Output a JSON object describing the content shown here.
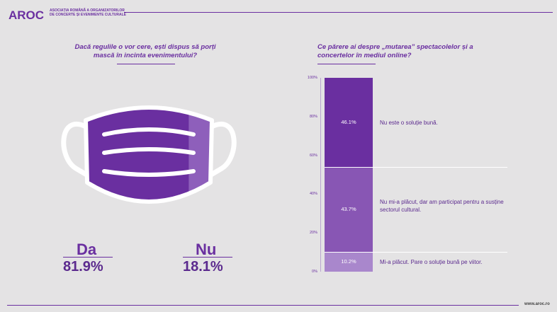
{
  "header": {
    "logo": "AROC",
    "org_name": "Asociația Română a Organizatorilor de Concerte și Evenimente Culturale"
  },
  "footer": {
    "url": "www.aroc.ro"
  },
  "colors": {
    "dark": "#6a2fa0",
    "mid": "#8856b4",
    "light": "#a987cc",
    "bg": "#e4e3e4"
  },
  "left_panel": {
    "question": "Dacă regulile o vor cere, ești dispus să porți mască în incinta evenimentului?",
    "yes_label": "Da",
    "yes_value": "81.9%",
    "no_label": "Nu",
    "no_value": "18.1%"
  },
  "right_panel": {
    "question": "Ce părere ai despre „mutarea” spectacolelor și a concertelor în mediul online?"
  },
  "chart_data": [
    {
      "type": "pie",
      "title": "Dacă regulile o vor cere, ești dispus să porți mască în incinta evenimentului?",
      "categories": [
        "Da",
        "Nu"
      ],
      "values": [
        81.9,
        18.1
      ],
      "visual": "mask-icon"
    },
    {
      "type": "bar",
      "stacked": true,
      "title": "Ce părere ai despre „mutarea” spectacolelor și a concertelor în mediul online?",
      "ylim": [
        0,
        100
      ],
      "yticks": [
        "0%",
        "20%",
        "40%",
        "60%",
        "80%",
        "100%"
      ],
      "series": [
        {
          "name": "Mi-a plăcut. Pare o soluție bună pe viitor.",
          "value": 10.2,
          "label": "10.2%"
        },
        {
          "name": "Nu mi-a plăcut, dar am participat pentru a susține sectorul cultural.",
          "value": 43.7,
          "label": "43.7%"
        },
        {
          "name": "Nu este o soluție bună.",
          "value": 46.1,
          "label": "46.1%"
        }
      ]
    }
  ]
}
